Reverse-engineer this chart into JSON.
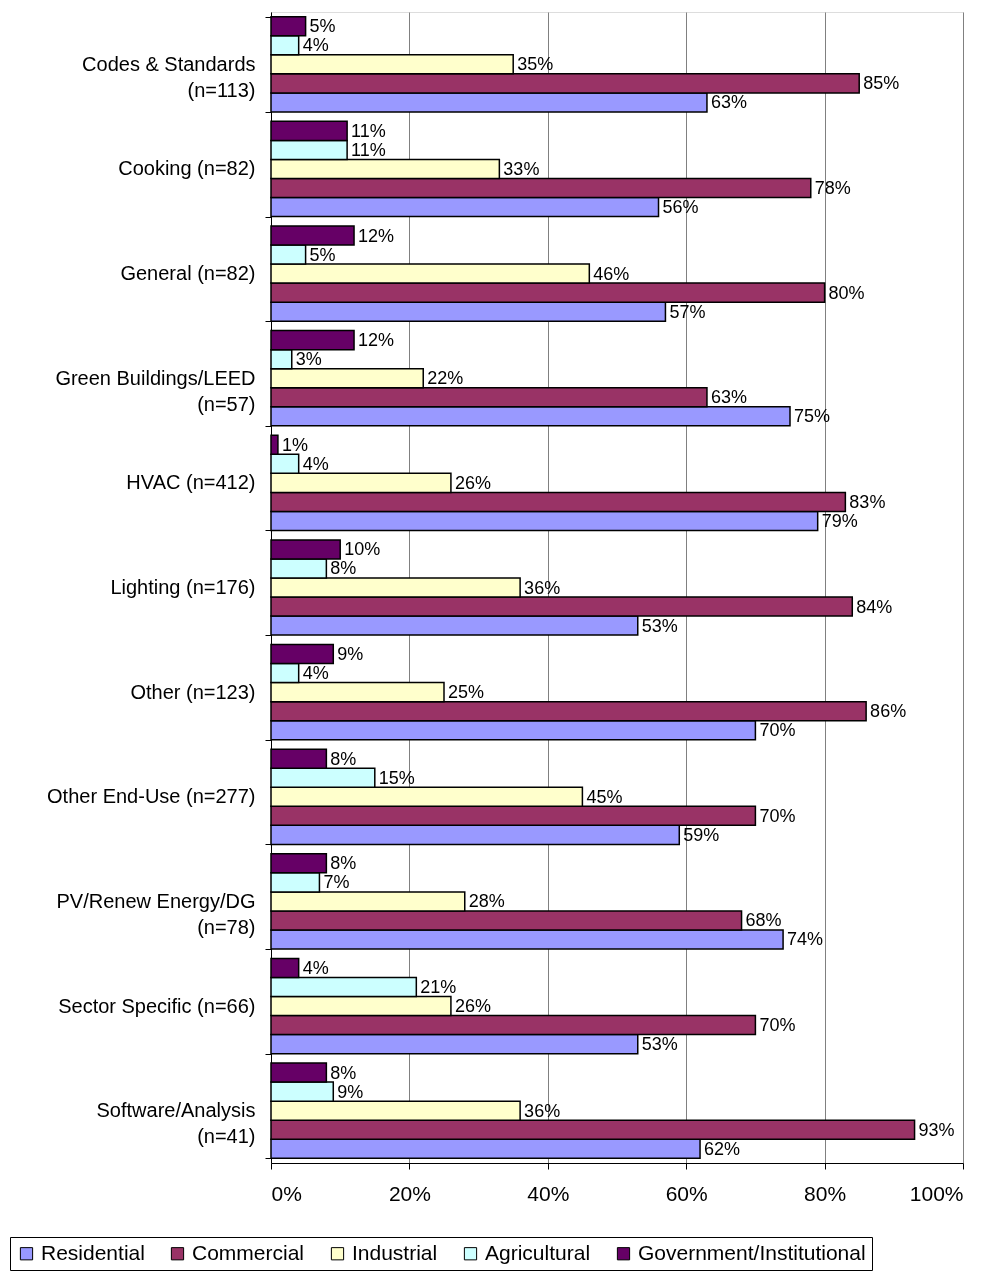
{
  "chart_data": {
    "type": "bar",
    "orientation": "horizontal",
    "categories": [
      "Codes & Standards\n(n=113)",
      "Cooking (n=82)",
      "General (n=82)",
      "Green Buildings/LEED\n(n=57)",
      "HVAC (n=412)",
      "Lighting (n=176)",
      "Other (n=123)",
      "Other End-Use (n=277)",
      "PV/Renew Energy/DG\n(n=78)",
      "Sector Specific (n=66)",
      "Software/Analysis\n(n=41)"
    ],
    "series": [
      {
        "name": "Residential",
        "color": "#9999ff",
        "values": [
          63,
          56,
          57,
          75,
          79,
          53,
          70,
          59,
          74,
          53,
          62
        ],
        "value_labels": [
          "63%",
          "56%",
          "57%",
          "75%",
          "79%",
          "53%",
          "70%",
          "59%",
          "74%",
          "53%",
          "62%"
        ]
      },
      {
        "name": "Commercial",
        "color": "#993366",
        "values": [
          85,
          78,
          80,
          63,
          83,
          84,
          86,
          70,
          68,
          70,
          93
        ],
        "value_labels": [
          "85%",
          "78%",
          "80%",
          "63%",
          "83%",
          "84%",
          "86%",
          "70%",
          "68%",
          "70%",
          "93%"
        ]
      },
      {
        "name": "Industrial",
        "color": "#ffffcc",
        "values": [
          35,
          33,
          46,
          22,
          26,
          36,
          25,
          45,
          28,
          26,
          36
        ],
        "value_labels": [
          "35%",
          "33%",
          "46%",
          "22%",
          "26%",
          "36%",
          "25%",
          "45%",
          "28%",
          "26%",
          "36%"
        ]
      },
      {
        "name": "Agricultural",
        "color": "#ccffff",
        "values": [
          4,
          11,
          5,
          3,
          4,
          8,
          4,
          15,
          7,
          21,
          9
        ],
        "value_labels": [
          "4%",
          "11%",
          "5%",
          "3%",
          "4%",
          "8%",
          "4%",
          "15%",
          "7%",
          "21%",
          "9%"
        ]
      },
      {
        "name": "Government/Institutional",
        "color": "#660066",
        "values": [
          5,
          11,
          12,
          12,
          1,
          10,
          9,
          8,
          8,
          4,
          8
        ],
        "value_labels": [
          "5%",
          "11%",
          "12%",
          "12%",
          "1%",
          "10%",
          "9%",
          "8%",
          "8%",
          "4%",
          "8%"
        ]
      }
    ],
    "xlim": [
      0,
      100
    ],
    "xticks": [
      {
        "value": 0,
        "label": "0%"
      },
      {
        "value": 20,
        "label": "20%"
      },
      {
        "value": 40,
        "label": "40%"
      },
      {
        "value": 60,
        "label": "60%"
      },
      {
        "value": 80,
        "label": "80%"
      },
      {
        "value": 100,
        "label": "100%"
      }
    ],
    "grid": "x",
    "legend": "bottom"
  }
}
